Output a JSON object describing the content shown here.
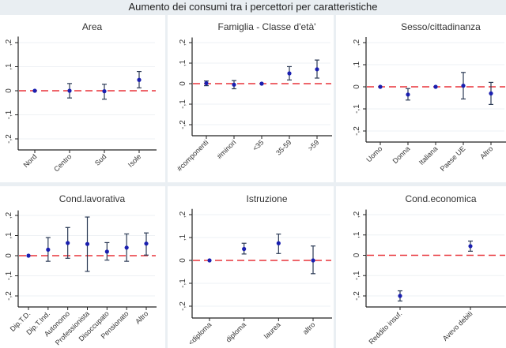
{
  "title": "Aumento dei consumi tra i percettori per caratteristiche",
  "colors": {
    "point": "#1a1fb0",
    "errorbar": "#2b3a55",
    "refline": "#e8333a",
    "grid": "#eef1f4",
    "axis": "#222222",
    "text": "#333333"
  },
  "chart_data": [
    {
      "type": "scatter",
      "title": "Area",
      "ylim": [
        -0.25,
        0.25
      ],
      "yticks": [
        -0.2,
        -0.1,
        0,
        0.1,
        0.2
      ],
      "ytick_labels": [
        "-,2",
        "-,1",
        "0",
        ",1",
        ",2"
      ],
      "categories": [
        "Nord",
        "Centro",
        "Sud",
        "Isole"
      ],
      "values": [
        0,
        0,
        -0.002,
        0.045
      ],
      "ci_low": [
        null,
        -0.03,
        -0.035,
        0.012
      ],
      "ci_high": [
        null,
        0.03,
        0.027,
        0.08
      ],
      "reference_line": 0,
      "grid": true
    },
    {
      "type": "scatter",
      "title": "Famiglia - Classe d'età'",
      "ylim": [
        -0.25,
        0.25
      ],
      "yticks": [
        -0.2,
        -0.1,
        0,
        0.1,
        0.2
      ],
      "ytick_labels": [
        "-,2",
        "-,1",
        "0",
        ",1",
        ",2"
      ],
      "categories": [
        "#componenti",
        "#minori",
        "<35",
        "35-59",
        ">59"
      ],
      "values": [
        0.002,
        -0.005,
        0,
        0.05,
        0.07
      ],
      "ci_low": [
        -0.01,
        -0.025,
        null,
        0.018,
        0.027
      ],
      "ci_high": [
        0.013,
        0.015,
        null,
        0.083,
        0.115
      ],
      "reference_line": 0,
      "grid": true
    },
    {
      "type": "scatter",
      "title": "Sesso/cittadinanza",
      "ylim": [
        -0.25,
        0.25
      ],
      "yticks": [
        -0.2,
        -0.1,
        0,
        0.1,
        0.2
      ],
      "ytick_labels": [
        "-,2",
        "-,1",
        "0",
        ",1",
        ",2"
      ],
      "categories": [
        "Uomo",
        "Donna",
        "Italiana",
        "Paese UE",
        "Altro"
      ],
      "values": [
        0,
        -0.035,
        0,
        0.005,
        -0.03
      ],
      "ci_low": [
        null,
        -0.06,
        null,
        -0.055,
        -0.08
      ],
      "ci_high": [
        null,
        -0.008,
        null,
        0.065,
        0.02
      ],
      "reference_line": 0,
      "grid": true
    },
    {
      "type": "scatter",
      "title": "Cond.lavorativa",
      "ylim": [
        -0.25,
        0.25
      ],
      "yticks": [
        -0.2,
        -0.1,
        0,
        0.1,
        0.2
      ],
      "ytick_labels": [
        "-,2",
        "-,1",
        "0",
        ",1",
        ",2"
      ],
      "categories": [
        "Dip.T.D.",
        "Dip.T.Ind.",
        "Autonomo",
        "Professionista",
        "Disoccupato",
        "Pensionato",
        "Altro"
      ],
      "values": [
        0,
        0.03,
        0.063,
        0.058,
        0.02,
        0.04,
        0.06
      ],
      "ci_low": [
        null,
        -0.028,
        -0.013,
        -0.078,
        -0.022,
        -0.028,
        0.003
      ],
      "ci_high": [
        null,
        0.09,
        0.14,
        0.192,
        0.065,
        0.108,
        0.113
      ],
      "reference_line": 0,
      "grid": true
    },
    {
      "type": "scatter",
      "title": "Istruzione",
      "ylim": [
        -0.25,
        0.25
      ],
      "yticks": [
        -0.2,
        -0.1,
        0,
        0.1,
        0.2
      ],
      "ytick_labels": [
        "-,2",
        "-,1",
        "0",
        ",1",
        ",2"
      ],
      "categories": [
        "<diploma",
        "diploma",
        "laurea",
        "altro"
      ],
      "values": [
        0,
        0.05,
        0.075,
        0
      ],
      "ci_low": [
        null,
        0.028,
        0.03,
        -0.058
      ],
      "ci_high": [
        null,
        0.075,
        0.115,
        0.063
      ],
      "reference_line": 0,
      "grid": true
    },
    {
      "type": "scatter",
      "title": "Cond.economica",
      "ylim": [
        -0.25,
        0.25
      ],
      "yticks": [
        -0.2,
        -0.1,
        0,
        0.1,
        0.2
      ],
      "ytick_labels": [
        "-,2",
        "-,1",
        "0",
        ",1",
        ",2"
      ],
      "categories": [
        "Reddito insuf.",
        "Avevo debiti"
      ],
      "values": [
        -0.2,
        0.045
      ],
      "ci_low": [
        -0.225,
        0.02
      ],
      "ci_high": [
        -0.175,
        0.07
      ],
      "reference_line": 0,
      "grid": true
    }
  ]
}
